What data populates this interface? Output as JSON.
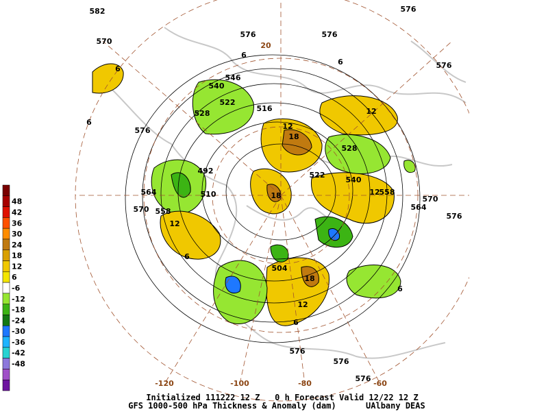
{
  "colorbar": {
    "ticks": [
      48,
      42,
      36,
      30,
      24,
      18,
      12,
      6,
      -6,
      -12,
      -18,
      -24,
      -30,
      -36,
      -42,
      -48
    ],
    "colors": [
      "#7a0000",
      "#a80000",
      "#e01000",
      "#ff5000",
      "#ff8c00",
      "#c07a10",
      "#d9a000",
      "#f0c800",
      "#f4e600",
      "#ffffff",
      "#96e632",
      "#3cb414",
      "#147814",
      "#1e78ff",
      "#1eb4ff",
      "#28d2d2",
      "#8c78dc",
      "#a050c8",
      "#6e14a0"
    ]
  },
  "longitudes": [
    "-120",
    "-100",
    "-80",
    "-60",
    "20"
  ],
  "contour_labels": [
    "582",
    "576",
    "570",
    "576",
    "576",
    "576",
    "576",
    "564",
    "570",
    "558",
    "570",
    "564",
    "576",
    "576",
    "576",
    "576",
    "546",
    "540",
    "522",
    "516",
    "528",
    "528",
    "522",
    "540",
    "558",
    "492",
    "510",
    "504",
    "12",
    "18",
    "12",
    "12",
    "18",
    "6",
    "6",
    "6",
    "12",
    "6",
    "6",
    "6",
    "6",
    "12",
    "18"
  ],
  "footer": {
    "line1": "Initialized 111222 12 Z   0 h Forecast Valid 12/22 12 Z",
    "line2": "GFS 1000-500 hPa Thickness & Anomaly (dam)      UAlbany DEAS"
  }
}
